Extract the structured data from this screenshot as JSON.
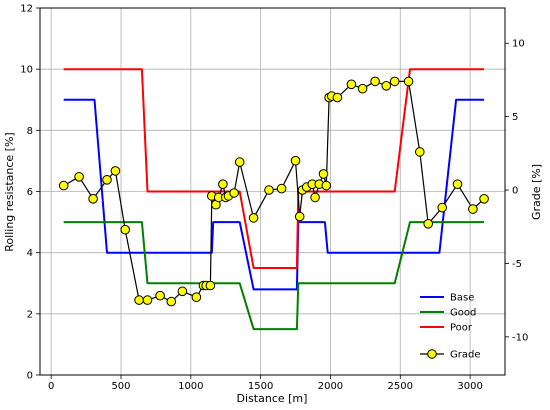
{
  "chart_data": {
    "type": "line",
    "xlabel": "Distance [m]",
    "ylabel_left": "Rolling resistance [%]",
    "ylabel_right": "Grade [%]",
    "xlim": [
      -80,
      3250
    ],
    "ylim_left": [
      0,
      12
    ],
    "ylim_right": [
      -12.6,
      12.4
    ],
    "xticks": [
      0,
      500,
      1000,
      1500,
      2000,
      2500,
      3000
    ],
    "yticks_left": [
      0,
      2,
      4,
      6,
      8,
      10,
      12
    ],
    "yticks_right": [
      -10,
      -5,
      0,
      5,
      10
    ],
    "grid": true,
    "legend_position": "lower-right",
    "series": [
      {
        "name": "Base",
        "axis": "left",
        "color": "#0000ff",
        "points": [
          [
            90,
            9
          ],
          [
            310,
            9
          ],
          [
            400,
            4
          ],
          [
            1150,
            4
          ],
          [
            1160,
            5
          ],
          [
            1350,
            5
          ],
          [
            1450,
            2.8
          ],
          [
            1760,
            2.8
          ],
          [
            1770,
            5
          ],
          [
            1960,
            5
          ],
          [
            1980,
            4
          ],
          [
            2780,
            4
          ],
          [
            2900,
            9
          ],
          [
            3100,
            9
          ]
        ]
      },
      {
        "name": "Good",
        "axis": "left",
        "color": "#008000",
        "points": [
          [
            90,
            5
          ],
          [
            650,
            5
          ],
          [
            690,
            3
          ],
          [
            1350,
            3
          ],
          [
            1450,
            1.5
          ],
          [
            1760,
            1.5
          ],
          [
            1770,
            3
          ],
          [
            2460,
            3
          ],
          [
            2570,
            5
          ],
          [
            3100,
            5
          ]
        ]
      },
      {
        "name": "Poor",
        "axis": "left",
        "color": "#ff0000",
        "points": [
          [
            90,
            10
          ],
          [
            650,
            10
          ],
          [
            690,
            6
          ],
          [
            1350,
            6
          ],
          [
            1450,
            3.5
          ],
          [
            1760,
            3.5
          ],
          [
            1770,
            6
          ],
          [
            2460,
            6
          ],
          [
            2570,
            10
          ],
          [
            3100,
            10
          ]
        ]
      },
      {
        "name": "Grade",
        "axis": "right",
        "color": "#000000",
        "marker_color": "#ffff00",
        "points": [
          [
            90,
            0.3
          ],
          [
            200,
            0.9
          ],
          [
            300,
            -0.6
          ],
          [
            400,
            0.7
          ],
          [
            460,
            1.3
          ],
          [
            530,
            -2.7
          ],
          [
            630,
            -7.5
          ],
          [
            690,
            -7.5
          ],
          [
            780,
            -7.2
          ],
          [
            860,
            -7.6
          ],
          [
            940,
            -6.9
          ],
          [
            1040,
            -7.3
          ],
          [
            1090,
            -6.5
          ],
          [
            1110,
            -6.5
          ],
          [
            1140,
            -6.5
          ],
          [
            1150,
            -0.4
          ],
          [
            1180,
            -1.0
          ],
          [
            1200,
            -0.5
          ],
          [
            1230,
            0.4
          ],
          [
            1250,
            -0.5
          ],
          [
            1270,
            -0.4
          ],
          [
            1310,
            -0.2
          ],
          [
            1350,
            1.9
          ],
          [
            1450,
            -1.9
          ],
          [
            1560,
            0
          ],
          [
            1650,
            0.1
          ],
          [
            1750,
            2.0
          ],
          [
            1780,
            -1.8
          ],
          [
            1800,
            0
          ],
          [
            1830,
            0.2
          ],
          [
            1870,
            0.4
          ],
          [
            1890,
            -0.5
          ],
          [
            1920,
            0.4
          ],
          [
            1950,
            1.1
          ],
          [
            1970,
            0.3
          ],
          [
            1990,
            6.3
          ],
          [
            2010,
            6.4
          ],
          [
            2050,
            6.3
          ],
          [
            2150,
            7.2
          ],
          [
            2230,
            6.9
          ],
          [
            2320,
            7.4
          ],
          [
            2400,
            7.1
          ],
          [
            2460,
            7.4
          ],
          [
            2560,
            7.4
          ],
          [
            2640,
            2.6
          ],
          [
            2700,
            -2.3
          ],
          [
            2800,
            -1.2
          ],
          [
            2910,
            0.4
          ],
          [
            3020,
            -1.3
          ],
          [
            3100,
            -0.6
          ]
        ]
      }
    ]
  }
}
